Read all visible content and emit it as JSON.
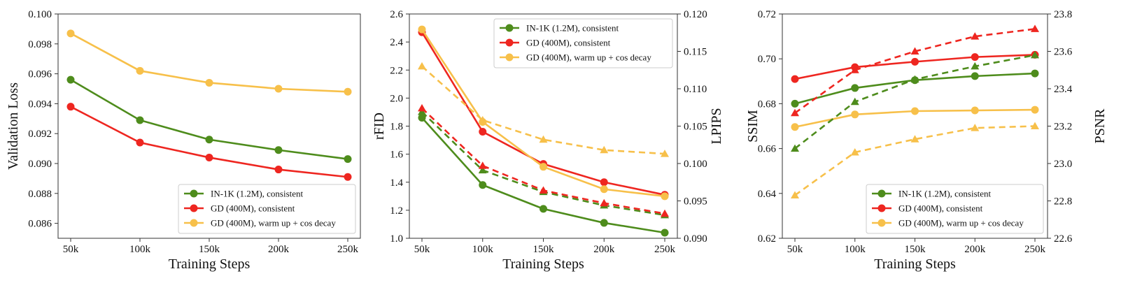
{
  "chart_data": [
    {
      "id": "loss",
      "type": "line",
      "xlabel": "Training Steps",
      "ylabel": "Validation Loss",
      "categories": [
        "50k",
        "100k",
        "150k",
        "200k",
        "250k"
      ],
      "ylim": [
        0.085,
        0.1
      ],
      "yticks": [
        "0.086",
        "0.088",
        "0.090",
        "0.092",
        "0.094",
        "0.096",
        "0.098",
        "0.100"
      ],
      "legend_position": "lower-right",
      "series": [
        {
          "name": "IN-1K (1.2M), consistent",
          "color": "#4e8c1c",
          "axis": "left",
          "marker": "circle",
          "style": "solid",
          "values": [
            0.0956,
            0.0929,
            0.0916,
            0.0909,
            0.0903
          ]
        },
        {
          "name": "GD (400M), consistent",
          "color": "#ee2620",
          "axis": "left",
          "marker": "circle",
          "style": "solid",
          "values": [
            0.0938,
            0.0914,
            0.0904,
            0.0896,
            0.0891
          ]
        },
        {
          "name": "GD (400M), warm up + cos decay",
          "color": "#f7c04a",
          "axis": "left",
          "marker": "circle",
          "style": "solid",
          "values": [
            0.0987,
            0.0962,
            0.0954,
            0.095,
            0.0948
          ]
        }
      ]
    },
    {
      "id": "rfid",
      "type": "line",
      "xlabel": "Training Steps",
      "ylabel": "rFID",
      "y2label": "LPIPS",
      "categories": [
        "50k",
        "100k",
        "150k",
        "200k",
        "250k"
      ],
      "ylim": [
        1.0,
        2.6
      ],
      "yticks": [
        "1.0",
        "1.2",
        "1.4",
        "1.6",
        "1.8",
        "2.0",
        "2.2",
        "2.4",
        "2.6"
      ],
      "y2lim": [
        0.09,
        0.12
      ],
      "y2ticks": [
        "0.090",
        "0.095",
        "0.100",
        "0.105",
        "0.110",
        "0.115",
        "0.120"
      ],
      "legend_position": "top-right",
      "series": [
        {
          "name": "IN-1K (1.2M), consistent",
          "color": "#4e8c1c",
          "axis": "left",
          "marker": "circle",
          "style": "solid",
          "values": [
            1.86,
            1.38,
            1.21,
            1.11,
            1.04
          ]
        },
        {
          "name": "GD (400M), consistent",
          "color": "#ee2620",
          "axis": "left",
          "marker": "circle",
          "style": "solid",
          "values": [
            2.47,
            1.76,
            1.53,
            1.4,
            1.31
          ]
        },
        {
          "name": "GD (400M), warm up + cos decay",
          "color": "#f7c04a",
          "axis": "left",
          "marker": "circle",
          "style": "solid",
          "values": [
            2.49,
            1.83,
            1.51,
            1.35,
            1.3
          ]
        },
        {
          "name": "IN-1K (1.2M), consistent",
          "color": "#4e8c1c",
          "axis": "right",
          "marker": "triangle",
          "style": "dashed",
          "values": [
            0.1069,
            0.0991,
            0.0962,
            0.0944,
            0.0931
          ]
        },
        {
          "name": "GD (400M), consistent",
          "color": "#ee2620",
          "axis": "right",
          "marker": "triangle",
          "style": "dashed",
          "values": [
            0.1074,
            0.0997,
            0.0964,
            0.0947,
            0.0933
          ]
        },
        {
          "name": "GD (400M), warm up + cos decay",
          "color": "#f7c04a",
          "axis": "right",
          "marker": "triangle",
          "style": "dashed",
          "values": [
            0.113,
            0.1058,
            0.1032,
            0.1018,
            0.1013
          ]
        }
      ]
    },
    {
      "id": "ssim",
      "type": "line",
      "xlabel": "Training Steps",
      "ylabel": "SSIM",
      "y2label": "PSNR",
      "categories": [
        "50k",
        "100k",
        "150k",
        "200k",
        "250k"
      ],
      "ylim": [
        0.62,
        0.72
      ],
      "yticks": [
        "0.62",
        "0.64",
        "0.66",
        "0.68",
        "0.70",
        "0.72"
      ],
      "y2lim": [
        22.6,
        23.8
      ],
      "y2ticks": [
        "22.6",
        "22.8",
        "23.0",
        "23.2",
        "23.4",
        "23.6",
        "23.8"
      ],
      "legend_position": "lower-right",
      "series": [
        {
          "name": "IN-1K (1.2M), consistent",
          "color": "#4e8c1c",
          "axis": "left",
          "marker": "circle",
          "style": "solid",
          "values": [
            0.68,
            0.687,
            0.6905,
            0.6923,
            0.6935
          ]
        },
        {
          "name": "GD (400M), consistent",
          "color": "#ee2620",
          "axis": "left",
          "marker": "circle",
          "style": "solid",
          "values": [
            0.691,
            0.6963,
            0.6987,
            0.7008,
            0.7018
          ]
        },
        {
          "name": "GD (400M), warm up + cos decay",
          "color": "#f7c04a",
          "axis": "left",
          "marker": "circle",
          "style": "solid",
          "values": [
            0.6696,
            0.6752,
            0.6767,
            0.677,
            0.6773
          ]
        },
        {
          "name": "IN-1K (1.2M), consistent",
          "color": "#4e8c1c",
          "axis": "right",
          "marker": "triangle",
          "style": "dashed",
          "values": [
            23.08,
            23.33,
            23.45,
            23.52,
            23.58
          ]
        },
        {
          "name": "GD (400M), consistent",
          "color": "#ee2620",
          "axis": "right",
          "marker": "triangle",
          "style": "dashed",
          "values": [
            23.27,
            23.5,
            23.6,
            23.68,
            23.72
          ]
        },
        {
          "name": "GD (400M), warm up + cos decay",
          "color": "#f7c04a",
          "axis": "right",
          "marker": "triangle",
          "style": "dashed",
          "values": [
            22.83,
            23.06,
            23.13,
            23.19,
            23.2
          ]
        }
      ]
    }
  ]
}
